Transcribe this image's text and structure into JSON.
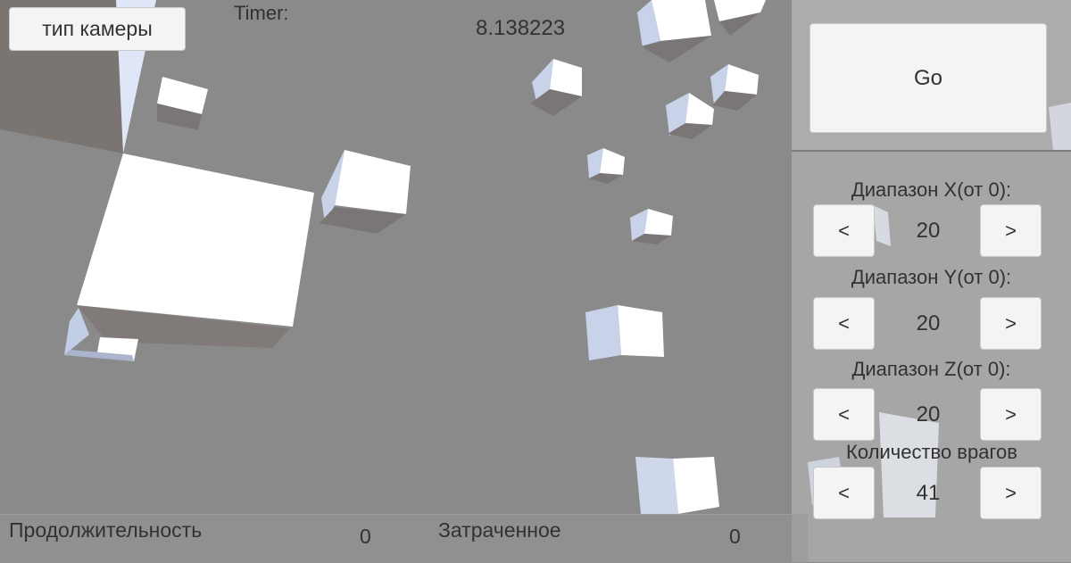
{
  "camera_button": {
    "label": "тип камеры"
  },
  "timer": {
    "label": "Timer:",
    "value": "8.138223"
  },
  "go_button": {
    "label": "Go"
  },
  "ranges": [
    {
      "label": "Диапазон X(от 0):",
      "value": "20",
      "dec": "<",
      "inc": ">"
    },
    {
      "label": "Диапазон Y(от 0):",
      "value": "20",
      "dec": "<",
      "inc": ">"
    },
    {
      "label": "Диапазон Z(от 0):",
      "value": "20",
      "dec": "<",
      "inc": ">"
    },
    {
      "label": "Количество врагов",
      "value": "41",
      "dec": "<",
      "inc": ">"
    }
  ],
  "bottom": {
    "duration_label": "Продолжительность",
    "duration_value": "0",
    "spent_label": "Затраченное",
    "spent_value": "0"
  },
  "colors": {
    "background": "#8a8a8a",
    "cube_front": "#ffffff",
    "cube_shade": "#7a7676",
    "cube_side": "#c8d2e8",
    "button": "#f4f4f4",
    "text": "#323232"
  }
}
